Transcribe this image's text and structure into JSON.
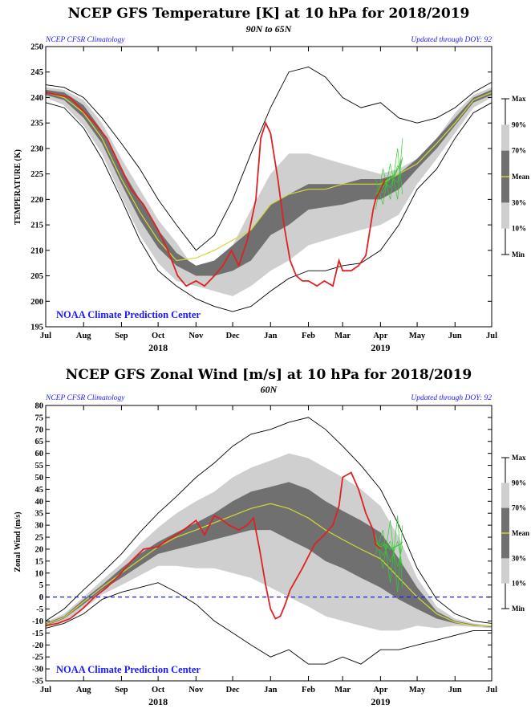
{
  "chart_data": [
    {
      "type": "area",
      "title": "NCEP GFS Temperature [K] at 10 hPa for 2018/2019",
      "subtitle": "90N to 65N",
      "note_left": "NCEP CFSR Climatology",
      "note_right": "Updated through DOY:  92",
      "credit": "NOAA Climate Prediction Center",
      "ylabel": "TEMPERATURE (K)",
      "ylim": [
        195,
        250
      ],
      "yticks": [
        195,
        200,
        205,
        210,
        215,
        220,
        225,
        230,
        235,
        240,
        245,
        250
      ],
      "xlim": [
        0,
        365
      ],
      "month_labels": [
        "Jul",
        "Aug",
        "Sep",
        "Oct",
        "Nov",
        "Dec",
        "Jan",
        "Feb",
        "Mar",
        "Apr",
        "May",
        "Jun",
        "Jul"
      ],
      "month_days": [
        0,
        31,
        62,
        92,
        123,
        153,
        184,
        215,
        243,
        274,
        304,
        335,
        365
      ],
      "year_labels": [
        {
          "text": "2018",
          "day": 92
        },
        {
          "text": "2019",
          "day": 274
        }
      ],
      "zero_line": false,
      "legend": [
        "Max",
        "90%",
        "70%",
        "Mean",
        "30%",
        "10%",
        "Min"
      ],
      "colors": {
        "outer_band": "#cfcfcf",
        "inner_band": "#707070",
        "mean": "#d6d63a",
        "observed": "#dd2222",
        "forecast": "#33cc33",
        "extreme": "#000000"
      },
      "x": [
        0,
        15,
        31,
        46,
        62,
        77,
        92,
        107,
        123,
        138,
        153,
        168,
        184,
        199,
        215,
        229,
        243,
        258,
        274,
        289,
        304,
        320,
        335,
        350,
        365
      ],
      "series": [
        {
          "name": "Max",
          "values": [
            242.5,
            242,
            240,
            236,
            231,
            226,
            220,
            215,
            210,
            213,
            220,
            229,
            238,
            245,
            246,
            244,
            240,
            238,
            239,
            236,
            235,
            236,
            238,
            241,
            243
          ]
        },
        {
          "name": "90%",
          "values": [
            242,
            241.5,
            239.5,
            235,
            228,
            222,
            216,
            211.5,
            206,
            207,
            211,
            218,
            225,
            229,
            229,
            228,
            227,
            226,
            225,
            226,
            228,
            232,
            237,
            240.5,
            242
          ]
        },
        {
          "name": "70%",
          "values": [
            241.5,
            241,
            238.5,
            233.5,
            226,
            220,
            214,
            209.5,
            207,
            208,
            211,
            214,
            219,
            221,
            223,
            223,
            223,
            224,
            224,
            225,
            228,
            232,
            236,
            240,
            241.5
          ]
        },
        {
          "name": "Mean",
          "values": [
            241,
            240,
            237,
            232,
            224,
            217.5,
            212,
            208,
            208.5,
            210,
            212,
            214,
            219,
            221,
            222,
            222,
            223,
            223,
            223,
            225,
            227,
            231,
            235,
            239.5,
            241
          ]
        },
        {
          "name": "30%",
          "values": [
            240.5,
            239.5,
            236,
            231,
            223,
            216,
            210.5,
            207,
            205,
            205,
            206,
            208,
            213,
            215,
            218,
            218.5,
            219,
            220,
            220,
            222,
            226,
            230,
            234.5,
            239,
            240.5
          ]
        },
        {
          "name": "10%",
          "values": [
            240,
            238.5,
            234.5,
            229,
            220.5,
            213,
            207.5,
            204,
            203,
            202,
            201,
            203,
            206,
            208,
            211,
            212,
            213,
            214,
            215,
            217,
            223,
            228,
            233,
            238,
            240
          ]
        },
        {
          "name": "Min",
          "values": [
            239,
            238,
            234,
            228,
            220,
            212,
            206,
            203,
            200.5,
            199,
            198,
            199,
            202,
            204.5,
            206,
            206,
            207,
            207.5,
            210,
            215,
            222,
            226,
            232,
            237,
            239
          ]
        },
        {
          "name": "Observed",
          "x": [
            0,
            10,
            20,
            30,
            40,
            50,
            60,
            70,
            80,
            92,
            100,
            108,
            115,
            123,
            130,
            138,
            145,
            152,
            158,
            165,
            172,
            176,
            180,
            184,
            190,
            195,
            200,
            205,
            210,
            215,
            222,
            228,
            235,
            240,
            243,
            250,
            256,
            262,
            268,
            270,
            274,
            278
          ],
          "values": [
            241,
            240.5,
            240,
            237.5,
            235,
            232,
            227,
            222,
            219,
            214,
            210,
            205,
            203,
            204,
            203,
            205,
            207,
            210,
            207,
            212,
            220,
            232,
            235,
            233,
            224,
            215,
            208,
            205,
            204,
            204,
            203,
            204,
            203,
            208,
            206,
            206,
            207,
            209,
            218,
            220,
            222,
            224
          ]
        },
        {
          "name": "Forecast",
          "x": [
            270,
            274,
            278,
            282,
            286,
            290,
            292
          ],
          "values": [
            221,
            222,
            223,
            224,
            225,
            227,
            228
          ]
        }
      ],
      "forecast_spread": [
        [
          270,
          218,
          224
        ],
        [
          276,
          219,
          226
        ],
        [
          282,
          220,
          227
        ],
        [
          288,
          220,
          230
        ],
        [
          292,
          221,
          232
        ]
      ]
    },
    {
      "type": "area",
      "title": "NCEP GFS Zonal Wind [m/s] at 10 hPa for 2018/2019",
      "subtitle": "60N",
      "note_left": "NCEP CFSR Climatology",
      "note_right": "Updated through DOY:  92",
      "credit": "NOAA Climate Prediction Center",
      "ylabel": "Zonal Wind (m/s)",
      "ylim": [
        -35,
        80
      ],
      "yticks": [
        -35,
        -30,
        -25,
        -20,
        -15,
        -10,
        -5,
        0,
        5,
        10,
        15,
        20,
        25,
        30,
        35,
        40,
        45,
        50,
        55,
        60,
        65,
        70,
        75,
        80
      ],
      "xlim": [
        0,
        365
      ],
      "month_labels": [
        "Jul",
        "Aug",
        "Sep",
        "Oct",
        "Nov",
        "Dec",
        "Jan",
        "Feb",
        "Mar",
        "Apr",
        "May",
        "Jun",
        "Jul"
      ],
      "month_days": [
        0,
        31,
        62,
        92,
        123,
        153,
        184,
        215,
        243,
        274,
        304,
        335,
        365
      ],
      "year_labels": [
        {
          "text": "2018",
          "day": 92
        },
        {
          "text": "2019",
          "day": 274
        }
      ],
      "zero_line": true,
      "legend": [
        "Max",
        "90%",
        "70%",
        "Mean",
        "30%",
        "10%",
        "Min"
      ],
      "colors": {
        "outer_band": "#cfcfcf",
        "inner_band": "#707070",
        "mean": "#d6d63a",
        "observed": "#dd2222",
        "forecast": "#33cc33",
        "extreme": "#000000",
        "zero": "#1a1aff"
      },
      "x": [
        0,
        15,
        31,
        46,
        62,
        77,
        92,
        107,
        123,
        138,
        153,
        168,
        184,
        199,
        215,
        229,
        243,
        258,
        274,
        289,
        304,
        320,
        335,
        350,
        365
      ],
      "series": [
        {
          "name": "Max",
          "values": [
            -10,
            -5,
            3,
            10,
            18,
            27,
            35,
            42,
            50,
            56,
            63,
            68,
            70,
            73,
            75,
            70,
            63,
            55,
            45,
            30,
            12,
            -1,
            -7,
            -10,
            -11
          ]
        },
        {
          "name": "90%",
          "values": [
            -10.5,
            -7,
            0,
            7,
            14,
            22,
            29,
            35,
            40,
            44,
            50,
            54,
            57,
            60,
            58,
            54,
            50,
            45,
            38,
            25,
            8,
            -4,
            -9,
            -11,
            -12
          ]
        },
        {
          "name": "70%",
          "values": [
            -11,
            -8,
            -1,
            5,
            12,
            18,
            23,
            27,
            31,
            35,
            40,
            44,
            46,
            48,
            45,
            40,
            36,
            32,
            27,
            16,
            4,
            -6,
            -10,
            -11.5,
            -12
          ]
        },
        {
          "name": "Mean",
          "values": [
            -11.5,
            -8.5,
            -2,
            4,
            10,
            15.5,
            21,
            25,
            28,
            31,
            34,
            37,
            39,
            37,
            33,
            28,
            24,
            20,
            16,
            8,
            0,
            -7,
            -10.5,
            -12,
            -12
          ]
        },
        {
          "name": "30%",
          "values": [
            -12,
            -9,
            -3,
            3,
            8,
            13,
            18,
            20,
            22,
            24,
            26,
            28,
            28,
            24,
            20,
            15,
            12,
            8,
            4,
            -1,
            -5,
            -9,
            -11,
            -12,
            -12.5
          ]
        },
        {
          "name": "10%",
          "values": [
            -12.5,
            -10,
            -5,
            1,
            5,
            9,
            13,
            13,
            12,
            12,
            10,
            8,
            4,
            0,
            -4,
            -8,
            -10,
            -12,
            -14,
            -14,
            -12,
            -13,
            -12,
            -12.5,
            -13
          ]
        },
        {
          "name": "Min",
          "values": [
            -13,
            -11,
            -7,
            -1,
            2,
            4,
            6,
            2,
            -3,
            -10,
            -15,
            -20,
            -25,
            -22,
            -28,
            -28,
            -25,
            -28,
            -22,
            -22,
            -20,
            -18,
            -16,
            -14,
            -14
          ]
        },
        {
          "name": "Observed",
          "x": [
            0,
            10,
            20,
            30,
            40,
            50,
            60,
            70,
            80,
            92,
            100,
            110,
            118,
            123,
            130,
            138,
            145,
            150,
            158,
            165,
            170,
            175,
            180,
            184,
            188,
            192,
            196,
            200,
            210,
            220,
            228,
            235,
            240,
            243,
            250,
            256,
            262,
            268,
            270,
            274
          ],
          "values": [
            -12,
            -11,
            -9,
            -5,
            0,
            4,
            9,
            15,
            20,
            21,
            24,
            27,
            30,
            32,
            26,
            34,
            32,
            30,
            28,
            30,
            33,
            20,
            5,
            -5,
            -9,
            -8,
            -3,
            3,
            12,
            22,
            26,
            30,
            38,
            50,
            52,
            45,
            35,
            28,
            22,
            20
          ]
        },
        {
          "name": "Forecast",
          "x": [
            270,
            274,
            278,
            282,
            286,
            290,
            292
          ],
          "values": [
            22,
            21,
            22,
            20,
            21,
            22,
            23
          ]
        }
      ],
      "forecast_spread": [
        [
          270,
          18,
          26
        ],
        [
          276,
          12,
          28
        ],
        [
          282,
          6,
          32
        ],
        [
          288,
          2,
          34
        ],
        [
          292,
          4,
          30
        ]
      ]
    }
  ]
}
